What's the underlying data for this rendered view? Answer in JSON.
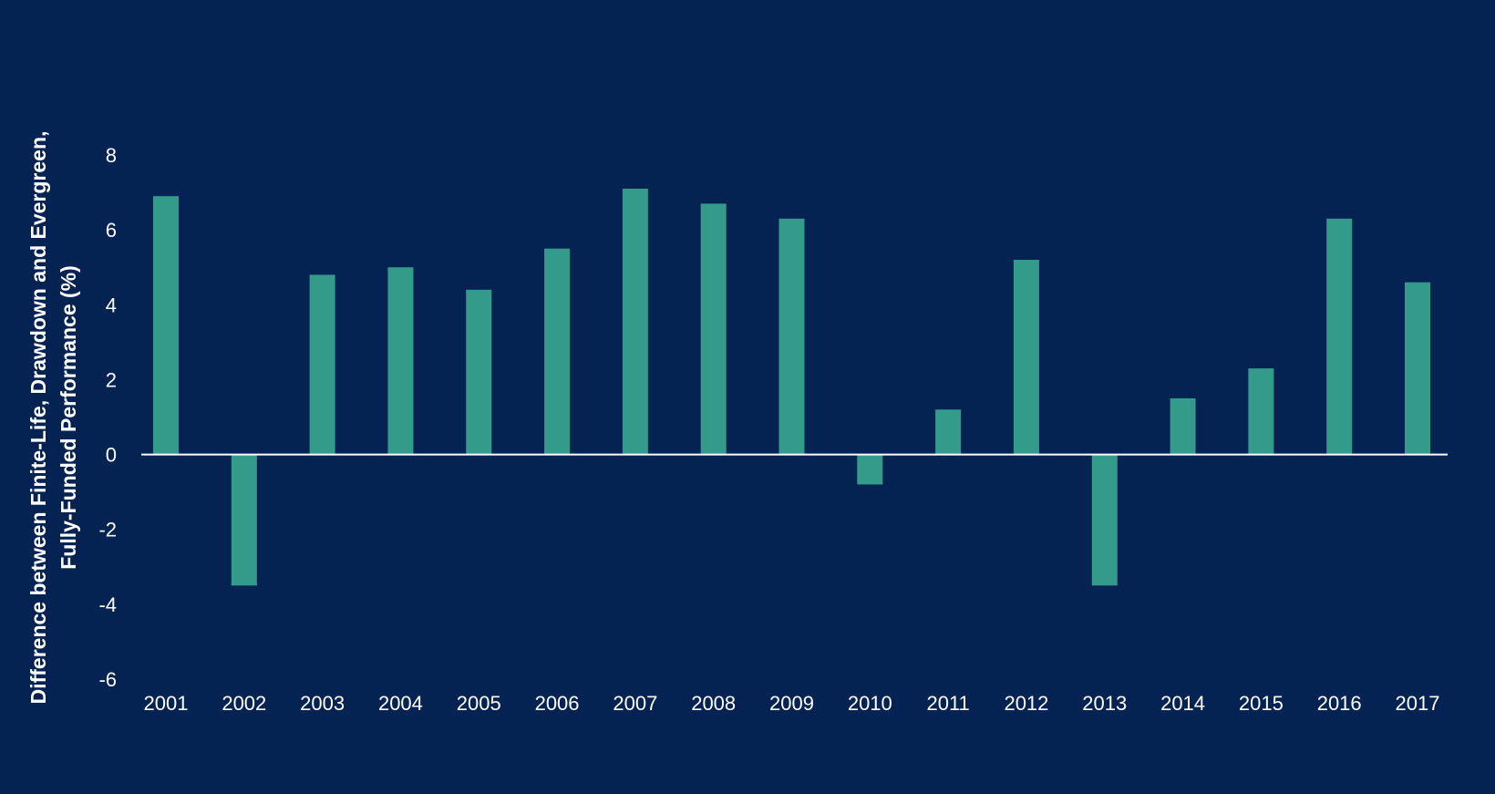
{
  "chart_data": {
    "type": "bar",
    "title": "",
    "xlabel": "",
    "ylabel_lines": [
      "Difference between Finite-Life, Drawdown and Evergreen,",
      "Fully-Funded Performance (%)"
    ],
    "categories": [
      "2001",
      "2002",
      "2003",
      "2004",
      "2005",
      "2006",
      "2007",
      "2008",
      "2009",
      "2010",
      "2011",
      "2012",
      "2013",
      "2014",
      "2015",
      "2016",
      "2017"
    ],
    "values": [
      6.9,
      -3.5,
      4.8,
      5.0,
      4.4,
      5.5,
      7.1,
      6.7,
      6.3,
      -0.8,
      1.2,
      5.2,
      -3.5,
      1.5,
      2.3,
      6.3,
      4.6
    ],
    "ylim": [
      -6,
      8
    ],
    "yticks": [
      8,
      6,
      4,
      2,
      0,
      -2,
      -4,
      -6
    ],
    "grid": false,
    "legend": "none",
    "colors": {
      "background": "#052352",
      "bar": "#349a8a",
      "axis": "#ffffff",
      "text": "#ffffff"
    }
  }
}
